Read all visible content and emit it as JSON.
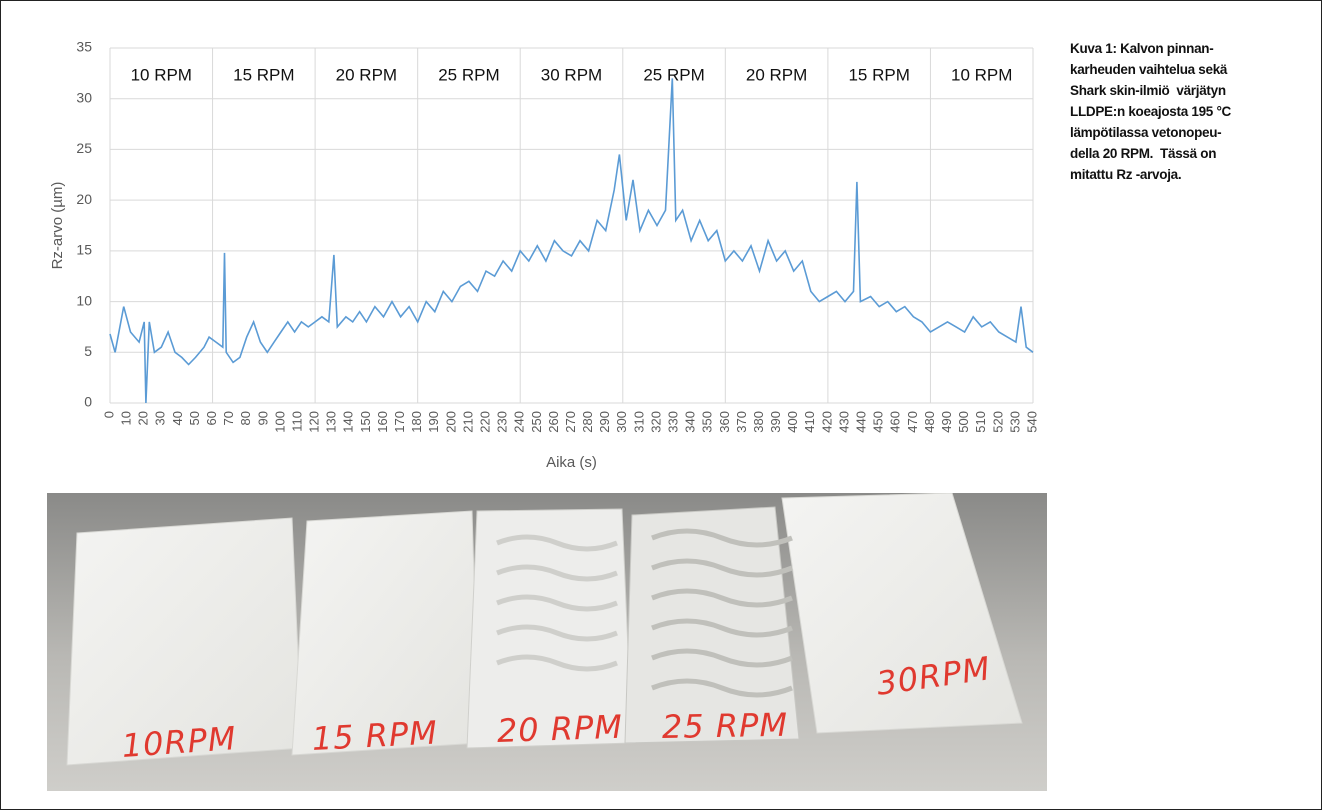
{
  "chart_data": {
    "type": "line",
    "x_label": "Aika (s)",
    "y_label": "Rz-arvo (µm)",
    "segment_labels": [
      "10 RPM",
      "15 RPM",
      "20 RPM",
      "25 RPM",
      "30 RPM",
      "25 RPM",
      "20 RPM",
      "15 RPM",
      "10 RPM"
    ],
    "xlim": [
      0,
      540
    ],
    "ylim": [
      0,
      35
    ],
    "xticks": [
      0,
      10,
      20,
      30,
      40,
      50,
      60,
      70,
      80,
      90,
      100,
      110,
      120,
      130,
      140,
      150,
      160,
      170,
      180,
      190,
      200,
      210,
      220,
      230,
      240,
      250,
      260,
      270,
      280,
      290,
      300,
      310,
      320,
      330,
      340,
      350,
      360,
      370,
      380,
      390,
      400,
      410,
      420,
      430,
      440,
      450,
      460,
      470,
      480,
      490,
      500,
      510,
      520,
      530,
      540
    ],
    "yticks": [
      0,
      5,
      10,
      15,
      20,
      25,
      30,
      35
    ],
    "grid": true,
    "series": [
      {
        "color": "#5b9bd5",
        "x": [
          0,
          3,
          8,
          12,
          17,
          20,
          21,
          23,
          26,
          30,
          34,
          38,
          42,
          46,
          50,
          55,
          58,
          62,
          66,
          67,
          68,
          72,
          76,
          80,
          84,
          88,
          92,
          96,
          100,
          104,
          108,
          112,
          116,
          120,
          124,
          128,
          131,
          133,
          138,
          142,
          146,
          150,
          155,
          160,
          165,
          170,
          175,
          180,
          185,
          190,
          195,
          200,
          205,
          210,
          215,
          220,
          225,
          230,
          235,
          240,
          245,
          250,
          255,
          260,
          265,
          270,
          275,
          280,
          285,
          290,
          295,
          298,
          302,
          306,
          310,
          315,
          320,
          325,
          329,
          331,
          335,
          340,
          345,
          350,
          355,
          360,
          365,
          370,
          375,
          380,
          385,
          390,
          395,
          400,
          405,
          410,
          415,
          420,
          425,
          430,
          435,
          437,
          439,
          445,
          450,
          455,
          460,
          465,
          470,
          475,
          480,
          485,
          490,
          495,
          500,
          505,
          510,
          515,
          520,
          525,
          530,
          533,
          536,
          540
        ],
        "values": [
          6.8,
          5,
          9.5,
          7,
          6,
          8,
          0,
          8,
          5,
          5.5,
          7,
          5,
          4.5,
          3.8,
          4.5,
          5.5,
          6.5,
          6,
          5.5,
          14.8,
          5,
          4,
          4.5,
          6.5,
          8,
          6,
          5,
          6,
          7,
          8,
          7,
          8,
          7.5,
          8,
          8.5,
          8,
          14.6,
          7.5,
          8.5,
          8,
          9,
          8,
          9.5,
          8.5,
          10,
          8.5,
          9.5,
          8,
          10,
          9,
          11,
          10,
          11.5,
          12,
          11,
          13,
          12.5,
          14,
          13,
          15,
          14,
          15.5,
          14,
          16,
          15,
          14.5,
          16,
          15,
          18,
          17,
          21,
          24.5,
          18,
          22,
          17,
          19,
          17.5,
          19,
          32,
          18,
          19,
          16,
          18,
          16,
          17,
          14,
          15,
          14,
          15.5,
          13,
          16,
          14,
          15,
          13,
          14,
          11,
          10,
          10.5,
          11,
          10,
          11,
          21.8,
          10,
          10.5,
          9.5,
          10,
          9,
          9.5,
          8.5,
          8,
          7,
          7.5,
          8,
          7.5,
          7,
          8.5,
          7.5,
          8,
          7,
          6.5,
          6,
          9.5,
          5.5,
          5
        ]
      }
    ]
  },
  "photo": {
    "labels": [
      "10RPM",
      "15 RPM",
      "20 RPM",
      "25 RPM",
      "30RPM"
    ]
  },
  "caption": {
    "lines": [
      "Kuva 1: Kalvon pinnan-",
      "karheuden vaihtelua sekä",
      "Shark skin-ilmiö  värjätyn",
      "LLDPE:n koeajosta 195 °C",
      "lämpötilassa vetonopeu-",
      "della 20 RPM.  Tässä on",
      "mitattu Rz -arvoja."
    ]
  }
}
